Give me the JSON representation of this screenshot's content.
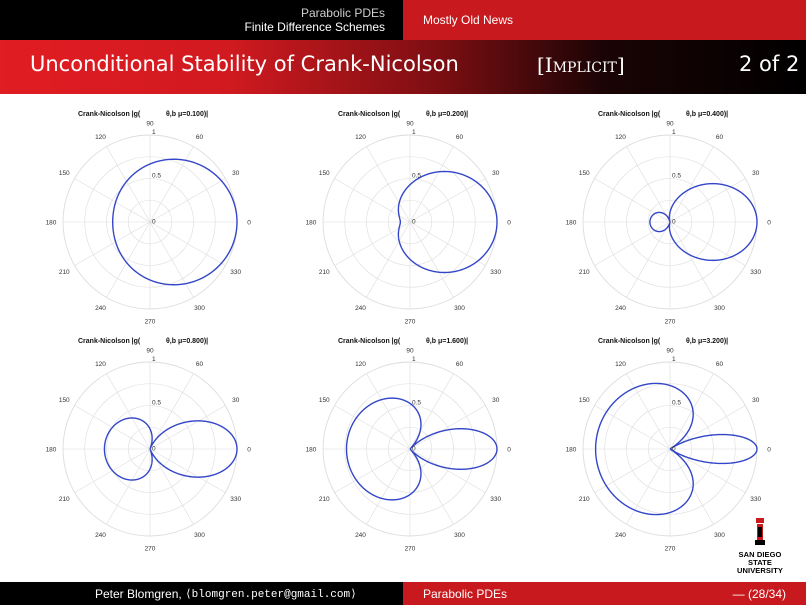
{
  "header": {
    "section_line1": "Parabolic PDEs",
    "section_line2": "Finite Difference Schemes",
    "subsection": "Mostly Old News"
  },
  "title": {
    "main": "Unconditional Stability of Crank-Nicolson",
    "tag": "[Implicit]",
    "page": "2 of 2"
  },
  "footer": {
    "author": "Peter Blomgren,",
    "email": "⟨blomgren.peter@gmail.com⟩",
    "topic": "Parabolic PDEs",
    "slide": "— (28/34)"
  },
  "logo": {
    "line1": "SAN DIEGO STATE",
    "line2": "UNIVERSITY"
  },
  "colors": {
    "curve": "#3346c8",
    "red": "#c8191e",
    "grid": "#dddddd"
  },
  "chart_data": [
    {
      "type": "polar",
      "title_left": "Crank-Nicolson |g(",
      "title_right": "θ,b μ=0.100)|",
      "mu": 0.1,
      "function": "|(1 - 2μ(1-cosθ)) / (1 + 2μ(1-cosθ))|",
      "r_ticks": [
        "0",
        "0.5",
        "1"
      ],
      "angle_ticks": [
        "0",
        "30",
        "60",
        "90",
        "120",
        "150",
        "180",
        "210",
        "240",
        "270",
        "300",
        "330"
      ],
      "rlim": [
        0,
        1
      ]
    },
    {
      "type": "polar",
      "title_left": "Crank-Nicolson |g(",
      "title_right": "θ,b μ=0.200)|",
      "mu": 0.2,
      "function": "|(1 - 2μ(1-cosθ)) / (1 + 2μ(1-cosθ))|",
      "r_ticks": [
        "0",
        "0.5",
        "1"
      ],
      "angle_ticks": [
        "0",
        "30",
        "60",
        "90",
        "120",
        "150",
        "180",
        "210",
        "240",
        "270",
        "300",
        "330"
      ],
      "rlim": [
        0,
        1
      ]
    },
    {
      "type": "polar",
      "title_left": "Crank-Nicolson |g(",
      "title_right": "θ,b μ=0.400)|",
      "mu": 0.4,
      "function": "|(1 - 2μ(1-cosθ)) / (1 + 2μ(1-cosθ))|",
      "r_ticks": [
        "0",
        "0.5",
        "1"
      ],
      "angle_ticks": [
        "0",
        "30",
        "60",
        "90",
        "120",
        "150",
        "180",
        "210",
        "240",
        "270",
        "300",
        "330"
      ],
      "rlim": [
        0,
        1
      ]
    },
    {
      "type": "polar",
      "title_left": "Crank-Nicolson |g(",
      "title_right": "θ,b μ=0.800)|",
      "mu": 0.8,
      "function": "|(1 - 2μ(1-cosθ)) / (1 + 2μ(1-cosθ))|",
      "r_ticks": [
        "0",
        "0.5",
        "1"
      ],
      "angle_ticks": [
        "0",
        "30",
        "60",
        "90",
        "120",
        "150",
        "180",
        "210",
        "240",
        "270",
        "300",
        "330"
      ],
      "rlim": [
        0,
        1
      ]
    },
    {
      "type": "polar",
      "title_left": "Crank-Nicolson |g(",
      "title_right": "θ,b μ=1.600)|",
      "mu": 1.6,
      "function": "|(1 - 2μ(1-cosθ)) / (1 + 2μ(1-cosθ))|",
      "r_ticks": [
        "0",
        "0.5",
        "1"
      ],
      "angle_ticks": [
        "0",
        "30",
        "60",
        "90",
        "120",
        "150",
        "180",
        "210",
        "240",
        "270",
        "300",
        "330"
      ],
      "rlim": [
        0,
        1
      ]
    },
    {
      "type": "polar",
      "title_left": "Crank-Nicolson |g(",
      "title_right": "θ,b μ=3.200)|",
      "mu": 3.2,
      "function": "|(1 - 2μ(1-cosθ)) / (1 + 2μ(1-cosθ))|",
      "r_ticks": [
        "0",
        "0.5",
        "1"
      ],
      "angle_ticks": [
        "0",
        "30",
        "60",
        "90",
        "120",
        "150",
        "180",
        "210",
        "240",
        "270",
        "300",
        "330"
      ],
      "rlim": [
        0,
        1
      ]
    }
  ]
}
